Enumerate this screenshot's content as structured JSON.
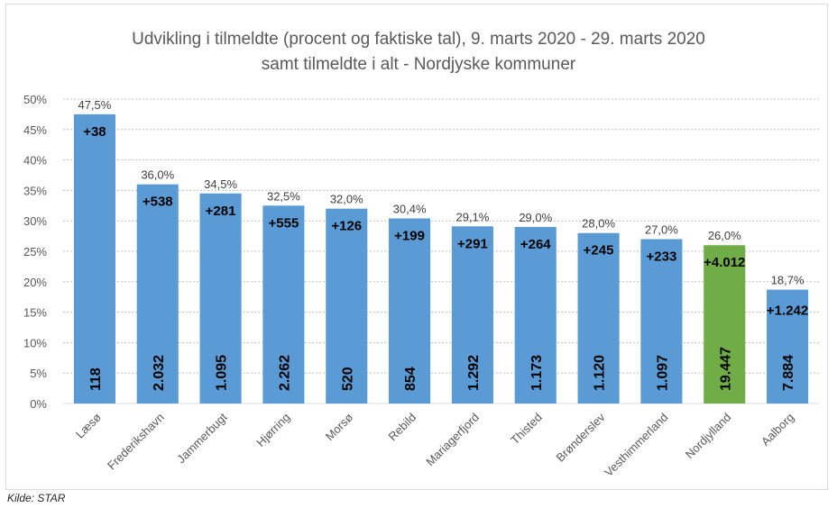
{
  "chart_data": {
    "type": "bar",
    "title": "Udvikling i tilmeldte (procent og faktiske tal), 9. marts 2020 - 29. marts 2020",
    "subtitle": "samt tilmeldte i alt - Nordjyske kommuner",
    "source": "Kilde: STAR",
    "ylim": [
      0,
      50
    ],
    "y_ticks": [
      "0%",
      "5%",
      "10%",
      "15%",
      "20%",
      "25%",
      "30%",
      "35%",
      "40%",
      "45%",
      "50%"
    ],
    "grid": true,
    "categories": [
      "Læsø",
      "Frederikshavn",
      "Jammerbugt",
      "Hjørring",
      "Morsø",
      "Rebild",
      "Mariagerfjord",
      "Thisted",
      "Brønderslev",
      "Vesthimmerland",
      "Nordjylland",
      "Aalborg"
    ],
    "values": [
      47.5,
      36.0,
      34.5,
      32.5,
      32.0,
      30.4,
      29.1,
      29.0,
      28.0,
      27.0,
      26.0,
      18.7
    ],
    "value_labels": [
      "47,5%",
      "36,0%",
      "34,5%",
      "32,5%",
      "32,0%",
      "30,4%",
      "29,1%",
      "29,0%",
      "28,0%",
      "27,0%",
      "26,0%",
      "18,7%"
    ],
    "increase_labels": [
      "+38",
      "+538",
      "+281",
      "+555",
      "+126",
      "+199",
      "+291",
      "+264",
      "+245",
      "+233",
      "+4.012",
      "+1.242"
    ],
    "total_labels": [
      "118",
      "2.032",
      "1.095",
      "2.262",
      "520",
      "854",
      "1.292",
      "1.173",
      "1.120",
      "1.097",
      "19.447",
      "7.884"
    ],
    "colors": {
      "bar": "#5b9bd5",
      "highlight": "#70ad47",
      "grid": "#bfbfbf"
    },
    "highlight_category": "Nordjylland"
  }
}
